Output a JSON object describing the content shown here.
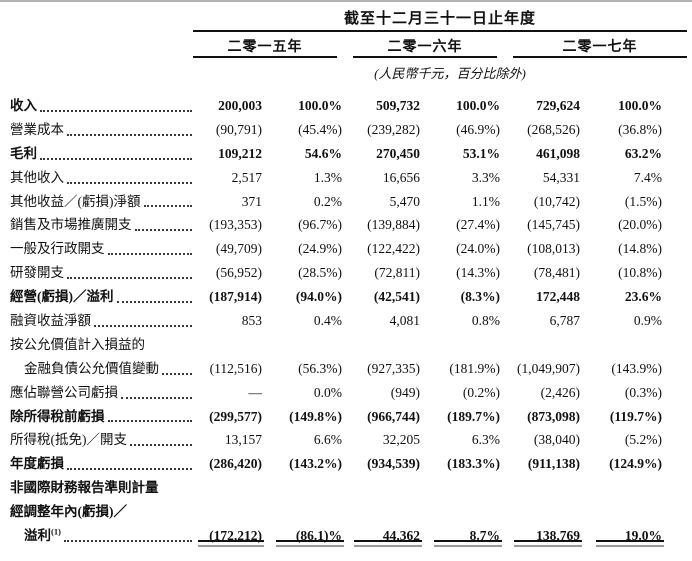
{
  "header": {
    "period_title": "截至十二月三十一日止年度",
    "years": [
      "二零一五年",
      "二零一六年",
      "二零一七年"
    ],
    "unit_note": "(人民幣千元，百分比除外)"
  },
  "colors": {
    "text": "#111111",
    "rule": "#111111",
    "rule_shadow": "#9a9a9a",
    "page_edge": "#b3b3b3"
  },
  "table": {
    "column_kinds": [
      "2015-value",
      "2015-pct",
      "2016-value",
      "2016-pct",
      "2017-value",
      "2017-pct"
    ],
    "rows": [
      {
        "label": "收入",
        "bold": true,
        "leaders": true,
        "cells": [
          "200,003",
          "100.0%",
          "509,732",
          "100.0%",
          "729,624",
          "100.0%"
        ]
      },
      {
        "label": "營業成本",
        "bold": false,
        "leaders": true,
        "cells": [
          "(90,791)",
          "(45.4%)",
          "(239,282)",
          "(46.9%)",
          "(268,526)",
          "(36.8%)"
        ]
      },
      {
        "label": "毛利",
        "bold": true,
        "leaders": true,
        "cells": [
          "109,212",
          "54.6%",
          "270,450",
          "53.1%",
          "461,098",
          "63.2%"
        ]
      },
      {
        "label": "其他收入",
        "bold": false,
        "leaders": true,
        "cells": [
          "2,517",
          "1.3%",
          "16,656",
          "3.3%",
          "54,331",
          "7.4%"
        ]
      },
      {
        "label": "其他收益／(虧損)淨額",
        "bold": false,
        "leaders": true,
        "cells": [
          "371",
          "0.2%",
          "5,470",
          "1.1%",
          "(10,742)",
          "(1.5%)"
        ]
      },
      {
        "label": "銷售及市場推廣開支",
        "bold": false,
        "leaders": true,
        "cells": [
          "(193,353)",
          "(96.7%)",
          "(139,884)",
          "(27.4%)",
          "(145,745)",
          "(20.0%)"
        ]
      },
      {
        "label": "一般及行政開支",
        "bold": false,
        "leaders": true,
        "cells": [
          "(49,709)",
          "(24.9%)",
          "(122,422)",
          "(24.0%)",
          "(108,013)",
          "(14.8%)"
        ]
      },
      {
        "label": "研發開支",
        "bold": false,
        "leaders": true,
        "cells": [
          "(56,952)",
          "(28.5%)",
          "(72,811)",
          "(14.3%)",
          "(78,481)",
          "(10.8%)"
        ]
      },
      {
        "label": "經營(虧損)／溢利",
        "bold": true,
        "leaders": true,
        "cells": [
          "(187,914)",
          "(94.0%)",
          "(42,541)",
          "(8.3%)",
          "172,448",
          "23.6%"
        ]
      },
      {
        "label": "融資收益淨額",
        "bold": false,
        "leaders": true,
        "cells": [
          "853",
          "0.4%",
          "4,081",
          "0.8%",
          "6,787",
          "0.9%"
        ]
      },
      {
        "label": "按公允價值計入損益的",
        "bold": false,
        "leaders": false,
        "cells": null
      },
      {
        "label": "金融負債公允價值變動",
        "bold": false,
        "indent": true,
        "leaders": true,
        "cells": [
          "(112,516)",
          "(56.3%)",
          "(927,335)",
          "(181.9%)",
          "(1,049,907)",
          "(143.9%)"
        ]
      },
      {
        "label": "應佔聯營公司虧損",
        "bold": false,
        "leaders": true,
        "cells": [
          "—",
          "0.0%",
          "(949)",
          "(0.2%)",
          "(2,426)",
          "(0.3%)"
        ]
      },
      {
        "label": "除所得稅前虧損",
        "bold": true,
        "leaders": true,
        "cells": [
          "(299,577)",
          "(149.8%)",
          "(966,744)",
          "(189.7%)",
          "(873,098)",
          "(119.7%)"
        ]
      },
      {
        "label": "所得稅(抵免)／開支",
        "bold": false,
        "leaders": true,
        "cells": [
          "13,157",
          "6.6%",
          "32,205",
          "6.3%",
          "(38,040)",
          "(5.2%)"
        ]
      },
      {
        "label": "年度虧損",
        "bold": true,
        "leaders": true,
        "cells": [
          "(286,420)",
          "(143.2%)",
          "(934,539)",
          "(183.3%)",
          "(911,138)",
          "(124.9%)"
        ]
      },
      {
        "label": "非國際財務報告準則計量",
        "bold": true,
        "leaders": false,
        "cells": null
      },
      {
        "label": "經調整年內(虧損)／",
        "bold": true,
        "leaders": false,
        "cells": null
      },
      {
        "label": "溢利",
        "sup": "(1)",
        "bold": true,
        "indent": true,
        "leaders": true,
        "double_rule": true,
        "cells": [
          "(172,212)",
          "(86.1)%",
          "44,362",
          "8.7%",
          "138,769",
          "19.0%"
        ]
      }
    ]
  }
}
